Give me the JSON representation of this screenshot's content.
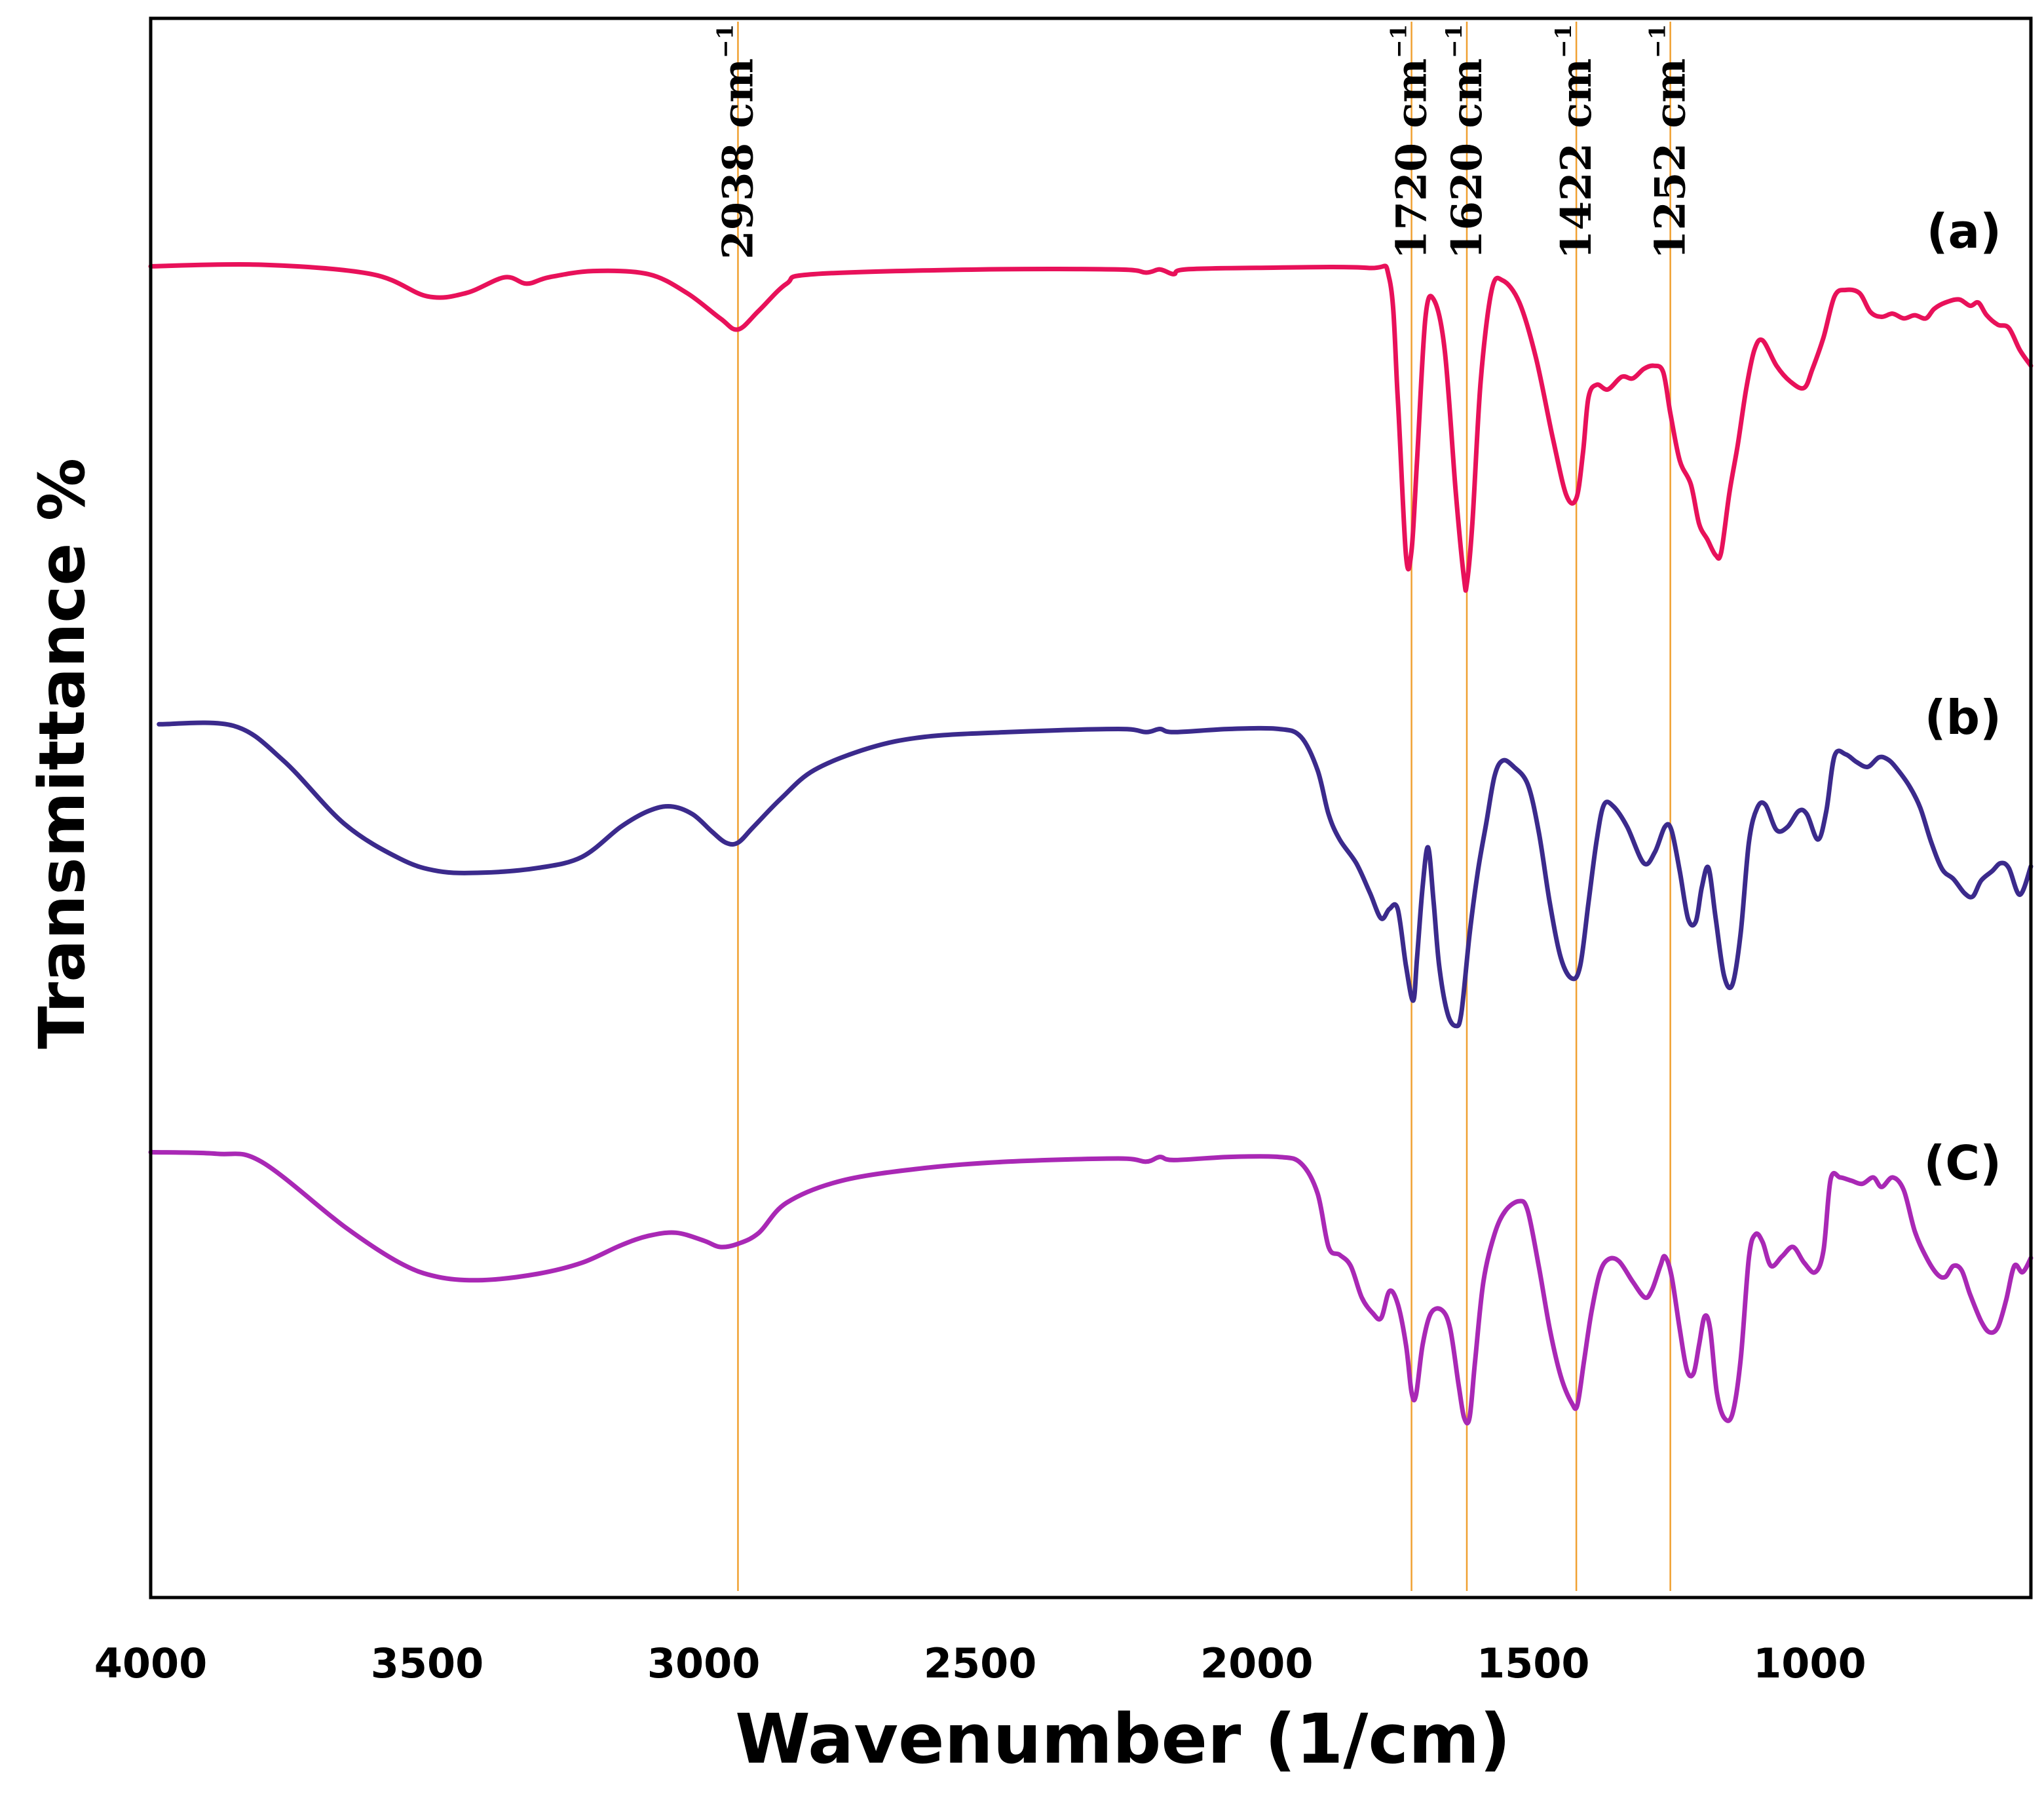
{
  "chart_data": {
    "type": "line",
    "title": "",
    "xlabel": "Wavenumber (1/cm)",
    "ylabel": "Transmittance %",
    "xlim": [
      4000,
      600
    ],
    "x_reversed": true,
    "xticks": [
      4000,
      3500,
      3000,
      2500,
      2000,
      1500,
      1000
    ],
    "xtick_labels": [
      "4000",
      "3500",
      "3000",
      "2500",
      "2000",
      "1500",
      "1000"
    ],
    "y_units": "relative transmittance (0 = bottom of frame, 100 = top of frame)",
    "ylim": [
      0,
      100
    ],
    "grid": false,
    "colors": {
      "a": "#e8115a",
      "b": "#3b2a8c",
      "c": "#a928b5",
      "marker_line": "#f0a030",
      "axis": "#000000"
    },
    "peak_markers": [
      {
        "x": 2938,
        "label": "2938 cm",
        "sup": "−1"
      },
      {
        "x": 1720,
        "label": "1720 cm",
        "sup": "−1"
      },
      {
        "x": 1620,
        "label": "1620 cm",
        "sup": "−1"
      },
      {
        "x": 1422,
        "label": "1422 cm",
        "sup": "−1"
      },
      {
        "x": 1252,
        "label": "1252 cm",
        "sup": "−1"
      }
    ],
    "series": [
      {
        "name": "(a)",
        "color": "#e8115a",
        "points": [
          [
            4000,
            84.3
          ],
          [
            3800,
            84.4
          ],
          [
            3600,
            83.8
          ],
          [
            3500,
            82.4
          ],
          [
            3430,
            82.6
          ],
          [
            3360,
            83.6
          ],
          [
            3320,
            83.2
          ],
          [
            3280,
            83.6
          ],
          [
            3200,
            84.0
          ],
          [
            3100,
            83.8
          ],
          [
            3030,
            82.6
          ],
          [
            2970,
            81.0
          ],
          [
            2938,
            80.3
          ],
          [
            2900,
            81.5
          ],
          [
            2850,
            83.2
          ],
          [
            2800,
            83.8
          ],
          [
            2500,
            84.1
          ],
          [
            2250,
            84.1
          ],
          [
            2200,
            83.9
          ],
          [
            2175,
            84.1
          ],
          [
            2150,
            83.8
          ],
          [
            2130,
            84.1
          ],
          [
            2000,
            84.2
          ],
          [
            1800,
            84.2
          ],
          [
            1760,
            83.5
          ],
          [
            1745,
            76.0
          ],
          [
            1730,
            66.0
          ],
          [
            1720,
            66.3
          ],
          [
            1710,
            72.0
          ],
          [
            1695,
            81.0
          ],
          [
            1680,
            82.2
          ],
          [
            1660,
            79.0
          ],
          [
            1640,
            70.0
          ],
          [
            1625,
            64.5
          ],
          [
            1620,
            64.2
          ],
          [
            1610,
            68.0
          ],
          [
            1595,
            77.0
          ],
          [
            1575,
            82.8
          ],
          [
            1555,
            83.4
          ],
          [
            1525,
            82.0
          ],
          [
            1495,
            78.5
          ],
          [
            1465,
            73.5
          ],
          [
            1440,
            69.8
          ],
          [
            1422,
            69.6
          ],
          [
            1410,
            72.5
          ],
          [
            1400,
            76.0
          ],
          [
            1385,
            76.8
          ],
          [
            1365,
            76.5
          ],
          [
            1340,
            77.3
          ],
          [
            1320,
            77.2
          ],
          [
            1300,
            77.8
          ],
          [
            1282,
            78.0
          ],
          [
            1265,
            77.6
          ],
          [
            1252,
            75.0
          ],
          [
            1235,
            72.0
          ],
          [
            1215,
            70.5
          ],
          [
            1200,
            68.0
          ],
          [
            1185,
            67.0
          ],
          [
            1170,
            66.0
          ],
          [
            1160,
            66.2
          ],
          [
            1145,
            70.0
          ],
          [
            1130,
            73.0
          ],
          [
            1115,
            76.5
          ],
          [
            1100,
            79.0
          ],
          [
            1085,
            79.6
          ],
          [
            1060,
            78.0
          ],
          [
            1035,
            77.0
          ],
          [
            1010,
            76.6
          ],
          [
            995,
            77.8
          ],
          [
            975,
            79.8
          ],
          [
            955,
            82.4
          ],
          [
            935,
            82.8
          ],
          [
            910,
            82.6
          ],
          [
            890,
            81.4
          ],
          [
            870,
            81.1
          ],
          [
            850,
            81.3
          ],
          [
            830,
            81.0
          ],
          [
            810,
            81.2
          ],
          [
            790,
            81.0
          ],
          [
            775,
            81.6
          ],
          [
            755,
            82.0
          ],
          [
            730,
            82.2
          ],
          [
            710,
            81.8
          ],
          [
            695,
            82.0
          ],
          [
            680,
            81.2
          ],
          [
            660,
            80.6
          ],
          [
            640,
            80.4
          ],
          [
            620,
            79.0
          ],
          [
            600,
            78.0
          ]
        ]
      },
      {
        "name": "(b)",
        "color": "#3b2a8c",
        "points": [
          [
            3985,
            55.3
          ],
          [
            3850,
            55.2
          ],
          [
            3760,
            53.0
          ],
          [
            3650,
            49.0
          ],
          [
            3550,
            46.8
          ],
          [
            3480,
            46.0
          ],
          [
            3400,
            45.9
          ],
          [
            3300,
            46.2
          ],
          [
            3220,
            46.9
          ],
          [
            3150,
            48.8
          ],
          [
            3100,
            49.8
          ],
          [
            3060,
            50.1
          ],
          [
            3020,
            49.6
          ],
          [
            2985,
            48.5
          ],
          [
            2960,
            47.8
          ],
          [
            2938,
            47.8
          ],
          [
            2910,
            48.8
          ],
          [
            2860,
            50.6
          ],
          [
            2800,
            52.4
          ],
          [
            2700,
            53.8
          ],
          [
            2600,
            54.5
          ],
          [
            2450,
            54.8
          ],
          [
            2250,
            55.0
          ],
          [
            2200,
            54.8
          ],
          [
            2175,
            55.0
          ],
          [
            2150,
            54.8
          ],
          [
            2050,
            55.0
          ],
          [
            1960,
            55.0
          ],
          [
            1920,
            54.5
          ],
          [
            1890,
            52.4
          ],
          [
            1870,
            49.6
          ],
          [
            1850,
            48.0
          ],
          [
            1820,
            46.5
          ],
          [
            1795,
            44.6
          ],
          [
            1775,
            43.0
          ],
          [
            1760,
            43.6
          ],
          [
            1745,
            43.6
          ],
          [
            1730,
            40.0
          ],
          [
            1717,
            37.8
          ],
          [
            1710,
            40.5
          ],
          [
            1700,
            45.0
          ],
          [
            1690,
            47.5
          ],
          [
            1680,
            44.0
          ],
          [
            1670,
            40.0
          ],
          [
            1655,
            37.0
          ],
          [
            1640,
            36.2
          ],
          [
            1630,
            37.0
          ],
          [
            1615,
            42.0
          ],
          [
            1600,
            46.0
          ],
          [
            1585,
            49.0
          ],
          [
            1570,
            52.0
          ],
          [
            1555,
            53.0
          ],
          [
            1535,
            52.6
          ],
          [
            1510,
            51.5
          ],
          [
            1490,
            48.5
          ],
          [
            1470,
            44.0
          ],
          [
            1450,
            40.5
          ],
          [
            1430,
            39.2
          ],
          [
            1415,
            40.0
          ],
          [
            1400,
            44.0
          ],
          [
            1385,
            48.0
          ],
          [
            1372,
            50.2
          ],
          [
            1355,
            50.1
          ],
          [
            1330,
            48.8
          ],
          [
            1300,
            46.5
          ],
          [
            1280,
            47.2
          ],
          [
            1262,
            48.8
          ],
          [
            1250,
            48.6
          ],
          [
            1235,
            46.0
          ],
          [
            1220,
            43.0
          ],
          [
            1206,
            42.8
          ],
          [
            1195,
            45.0
          ],
          [
            1183,
            46.2
          ],
          [
            1170,
            43.0
          ],
          [
            1155,
            39.4
          ],
          [
            1140,
            38.8
          ],
          [
            1125,
            42.0
          ],
          [
            1110,
            47.8
          ],
          [
            1095,
            50.0
          ],
          [
            1080,
            50.2
          ],
          [
            1060,
            48.6
          ],
          [
            1040,
            48.8
          ],
          [
            1020,
            49.8
          ],
          [
            1005,
            49.6
          ],
          [
            985,
            48.0
          ],
          [
            970,
            49.8
          ],
          [
            955,
            53.3
          ],
          [
            935,
            53.4
          ],
          [
            915,
            52.9
          ],
          [
            895,
            52.6
          ],
          [
            875,
            53.2
          ],
          [
            860,
            53.1
          ],
          [
            845,
            52.6
          ],
          [
            820,
            51.4
          ],
          [
            800,
            50.0
          ],
          [
            780,
            47.8
          ],
          [
            760,
            46.1
          ],
          [
            740,
            45.5
          ],
          [
            720,
            44.6
          ],
          [
            705,
            44.4
          ],
          [
            690,
            45.4
          ],
          [
            670,
            46.0
          ],
          [
            655,
            46.5
          ],
          [
            640,
            46.2
          ],
          [
            620,
            44.5
          ],
          [
            600,
            46.3
          ]
        ]
      },
      {
        "name": "(C)",
        "color": "#a928b5",
        "points": [
          [
            4000,
            28.2
          ],
          [
            3880,
            28.1
          ],
          [
            3800,
            27.6
          ],
          [
            3650,
            23.5
          ],
          [
            3550,
            21.2
          ],
          [
            3480,
            20.3
          ],
          [
            3400,
            20.1
          ],
          [
            3300,
            20.5
          ],
          [
            3220,
            21.2
          ],
          [
            3150,
            22.3
          ],
          [
            3100,
            22.9
          ],
          [
            3050,
            23.1
          ],
          [
            3000,
            22.6
          ],
          [
            2970,
            22.2
          ],
          [
            2938,
            22.4
          ],
          [
            2900,
            23.1
          ],
          [
            2850,
            25.0
          ],
          [
            2750,
            26.4
          ],
          [
            2600,
            27.2
          ],
          [
            2450,
            27.6
          ],
          [
            2250,
            27.8
          ],
          [
            2200,
            27.6
          ],
          [
            2175,
            27.9
          ],
          [
            2150,
            27.7
          ],
          [
            2050,
            27.9
          ],
          [
            1960,
            27.9
          ],
          [
            1920,
            27.5
          ],
          [
            1890,
            25.6
          ],
          [
            1870,
            22.2
          ],
          [
            1850,
            21.7
          ],
          [
            1830,
            21.0
          ],
          [
            1810,
            19.0
          ],
          [
            1790,
            18.0
          ],
          [
            1775,
            17.7
          ],
          [
            1760,
            19.4
          ],
          [
            1745,
            18.6
          ],
          [
            1730,
            16.0
          ],
          [
            1720,
            13.0
          ],
          [
            1712,
            12.8
          ],
          [
            1700,
            16.0
          ],
          [
            1685,
            18.0
          ],
          [
            1665,
            18.2
          ],
          [
            1650,
            17.0
          ],
          [
            1635,
            13.5
          ],
          [
            1625,
            11.4
          ],
          [
            1615,
            11.4
          ],
          [
            1605,
            15.0
          ],
          [
            1590,
            20.0
          ],
          [
            1570,
            23.0
          ],
          [
            1550,
            24.5
          ],
          [
            1525,
            25.1
          ],
          [
            1510,
            24.5
          ],
          [
            1490,
            21.0
          ],
          [
            1470,
            17.0
          ],
          [
            1450,
            14.0
          ],
          [
            1430,
            12.3
          ],
          [
            1420,
            12.2
          ],
          [
            1408,
            15.0
          ],
          [
            1395,
            18.0
          ],
          [
            1380,
            20.5
          ],
          [
            1365,
            21.4
          ],
          [
            1345,
            21.3
          ],
          [
            1320,
            20.0
          ],
          [
            1298,
            19.0
          ],
          [
            1285,
            19.5
          ],
          [
            1270,
            21.0
          ],
          [
            1262,
            21.6
          ],
          [
            1250,
            20.4
          ],
          [
            1235,
            17.0
          ],
          [
            1222,
            14.4
          ],
          [
            1210,
            14.2
          ],
          [
            1200,
            16.0
          ],
          [
            1190,
            17.8
          ],
          [
            1180,
            17.0
          ],
          [
            1168,
            13.0
          ],
          [
            1155,
            11.4
          ],
          [
            1140,
            11.6
          ],
          [
            1125,
            15.0
          ],
          [
            1110,
            21.5
          ],
          [
            1098,
            23.0
          ],
          [
            1085,
            22.5
          ],
          [
            1070,
            21.0
          ],
          [
            1050,
            21.6
          ],
          [
            1030,
            22.2
          ],
          [
            1010,
            21.2
          ],
          [
            990,
            20.6
          ],
          [
            975,
            22.0
          ],
          [
            962,
            26.5
          ],
          [
            945,
            26.6
          ],
          [
            925,
            26.4
          ],
          [
            905,
            26.2
          ],
          [
            885,
            26.6
          ],
          [
            870,
            26.0
          ],
          [
            850,
            26.6
          ],
          [
            830,
            25.8
          ],
          [
            810,
            23.2
          ],
          [
            790,
            21.6
          ],
          [
            770,
            20.5
          ],
          [
            755,
            20.3
          ],
          [
            740,
            21.0
          ],
          [
            725,
            20.7
          ],
          [
            710,
            19.2
          ],
          [
            690,
            17.5
          ],
          [
            675,
            16.8
          ],
          [
            660,
            17.1
          ],
          [
            645,
            18.8
          ],
          [
            630,
            21.0
          ],
          [
            615,
            20.6
          ],
          [
            600,
            21.5
          ]
        ]
      }
    ]
  }
}
